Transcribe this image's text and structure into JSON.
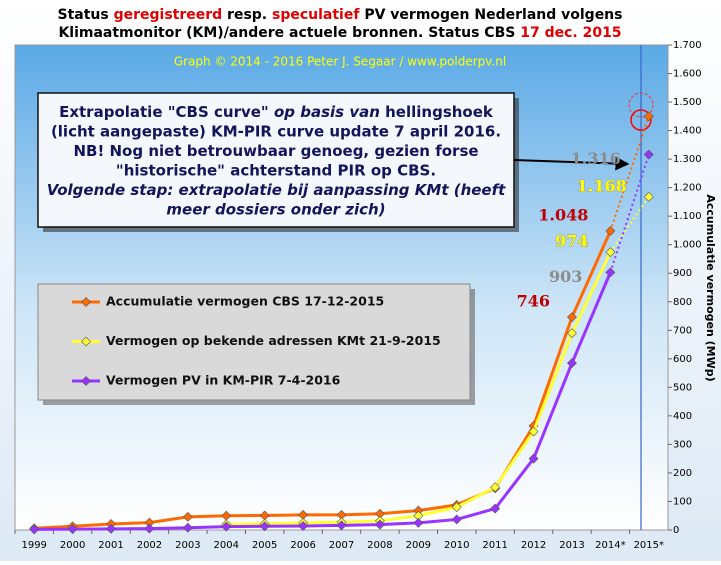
{
  "chart_data": {
    "type": "line",
    "title": [
      [
        {
          "text": "Status "
        },
        {
          "text": "geregistreerd",
          "color": "#e00000"
        },
        {
          "text": " resp. "
        },
        {
          "text": "speculatief",
          "color": "#e00000"
        },
        {
          "text": " PV vermogen Nederland volgens"
        }
      ],
      [
        {
          "text": "Klimaatmonitor (KM)/andere actuele bronnen. Status CBS "
        },
        {
          "text": "17 dec. 2015",
          "color": "#e00000"
        }
      ]
    ],
    "subtitle": "Graph © 2014 - 2016 Peter J. Segaar / www.polderpv.nl",
    "annotation": [
      [
        {
          "text": "Extrapolatie \"CBS curve\" "
        },
        {
          "text": "op basis van",
          "italic": true
        },
        {
          "text": " hellingshoek"
        }
      ],
      [
        {
          "text": "(licht aangepaste) KM-PIR curve update 7 april 2016."
        }
      ],
      [
        {
          "text": "NB! Nog niet betrouwbaar genoeg, gezien forse"
        }
      ],
      [
        {
          "text": "\"historische\" achterstand PIR op CBS."
        }
      ],
      [
        {
          "text": "Volgende stap: extrapolatie bij aanpassing KMt (heeft",
          "italic": true
        }
      ],
      [
        {
          "text": "meer dossiers onder zich)",
          "italic": true
        }
      ]
    ],
    "y_label": "Accumulatie vermogen (MWp)",
    "categories": [
      "1999",
      "2000",
      "2001",
      "2002",
      "2003",
      "2004",
      "2005",
      "2006",
      "2007",
      "2008",
      "2009",
      "2010",
      "2011",
      "2012",
      "2013",
      "2014*",
      "2015*"
    ],
    "series": [
      {
        "name": "Accumulatie vermogen CBS 17-12-2015",
        "color": "#ff6a00",
        "label_color": "#c00000",
        "values": [
          6,
          13,
          21,
          26,
          46,
          50,
          51,
          53,
          53,
          57,
          68,
          88,
          146,
          365,
          746,
          1048,
          1450
        ],
        "value_labels": [
          null,
          null,
          null,
          null,
          null,
          null,
          null,
          null,
          null,
          null,
          null,
          null,
          null,
          null,
          "746",
          "1.048",
          null
        ]
      },
      {
        "name": "Vermogen op bekende adressen KMt 21-9-2015",
        "color": "#ffff33",
        "label_color": "#ffff00",
        "values": [
          null,
          null,
          null,
          null,
          null,
          20,
          22,
          25,
          27,
          32,
          50,
          80,
          150,
          345,
          690,
          974,
          1168
        ],
        "value_labels": [
          null,
          null,
          null,
          null,
          null,
          null,
          null,
          null,
          null,
          null,
          null,
          null,
          null,
          null,
          null,
          "974",
          "1.168"
        ]
      },
      {
        "name": "Vermogen PV in KM-PIR 7-4-2016",
        "color": "#9933ff",
        "label_color": "#8c8c8c",
        "values": [
          2,
          3,
          4,
          5,
          8,
          12,
          13,
          14,
          16,
          19,
          25,
          37,
          75,
          250,
          585,
          903,
          1316
        ],
        "value_labels": [
          null,
          null,
          null,
          null,
          null,
          null,
          null,
          null,
          null,
          null,
          null,
          null,
          null,
          null,
          null,
          "903",
          "1.316"
        ]
      }
    ],
    "ylim": [
      0,
      1700
    ],
    "yticks": [
      0,
      100,
      200,
      300,
      400,
      500,
      600,
      700,
      800,
      900,
      {
        "value": 1000,
        "label": "1.000"
      },
      {
        "value": 1100,
        "label": "1.100"
      },
      {
        "value": 1200,
        "label": "1.200"
      },
      {
        "value": 1300,
        "label": "1.300"
      },
      {
        "value": 1400,
        "label": "1.400"
      },
      {
        "value": 1500,
        "label": "1.500"
      },
      {
        "value": 1600,
        "label": "1.600"
      },
      {
        "value": 1700,
        "label": "1.700"
      }
    ],
    "grid": false
  }
}
